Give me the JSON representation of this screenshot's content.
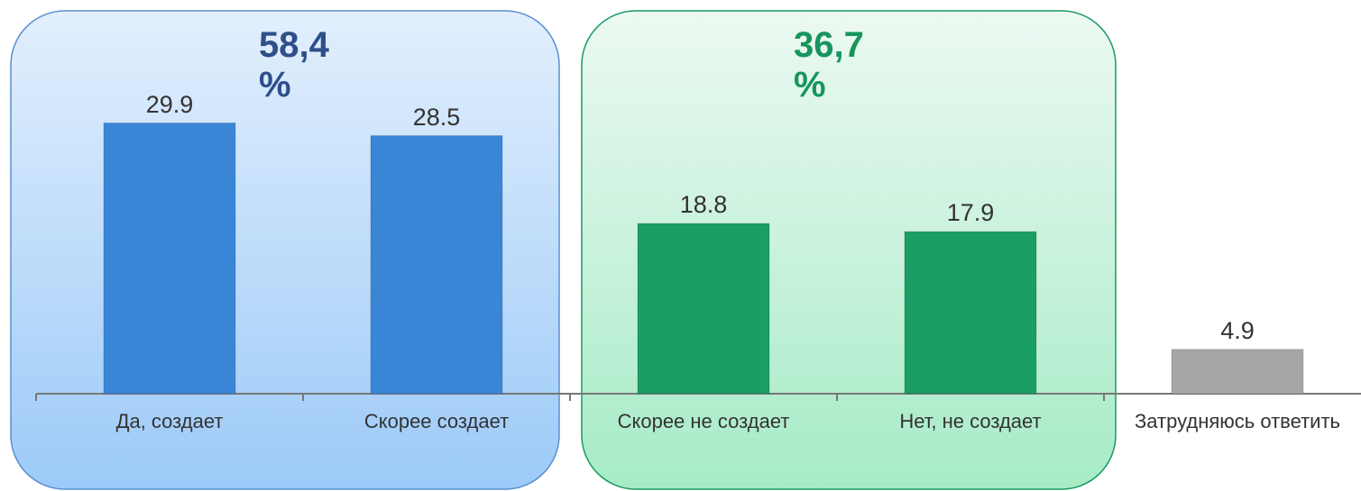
{
  "chart_data": {
    "type": "bar",
    "categories": [
      "Да, создает",
      "Скорее создает",
      "Скорее не создает",
      "Нет, не создает",
      "Затрудняюсь ответить"
    ],
    "values": [
      29.9,
      28.5,
      18.8,
      17.9,
      4.9
    ],
    "colors": [
      "#3a86d6",
      "#3a86d6",
      "#1a9e64",
      "#1a9e64",
      "#a6a6a6"
    ],
    "annotations": [
      {
        "text": "58,4 %",
        "color": "#2e4f8a"
      },
      {
        "text": "36,7 %",
        "color": "#17955c"
      }
    ]
  }
}
